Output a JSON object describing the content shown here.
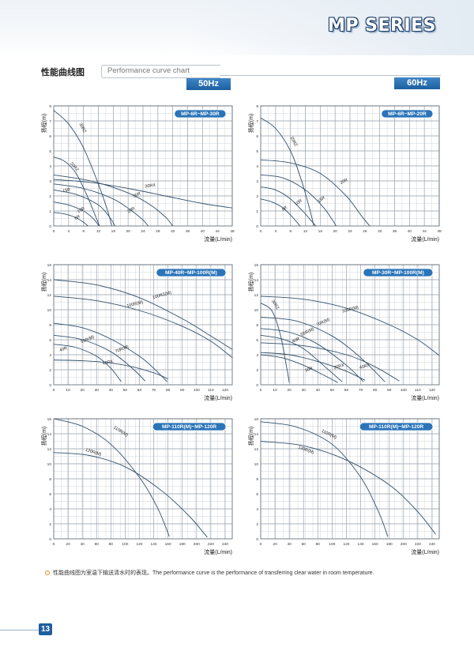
{
  "header": {
    "series_title": "MP SERIES"
  },
  "section": {
    "title_zh": "性能曲线图",
    "title_en": "Performance curve chart"
  },
  "badges": {
    "hz50": "50Hz",
    "hz60": "60Hz"
  },
  "footnote": "性能曲线图为室温下输送清水时的表现。The performance curve is the performance of transferring clear water in room temperature.",
  "page_number": "13",
  "chart_data": [
    {
      "type": "line",
      "id": "c50a",
      "title": "MP-6R~MP-30R",
      "ylabel": "扬程(m)",
      "xlabel": "流量(L/min)",
      "xlim": [
        0,
        48
      ],
      "ylim": [
        0,
        8
      ],
      "xticks": [
        4,
        8,
        12,
        16,
        20,
        24,
        28,
        32,
        36,
        40,
        44,
        48
      ],
      "yticks": [
        1,
        2,
        3,
        4,
        5,
        6,
        7,
        8
      ],
      "series": [
        {
          "name": "30RZ",
          "x": [
            0,
            4,
            8,
            12,
            14.5,
            15.6
          ],
          "y": [
            7.7,
            6.8,
            5.2,
            2.8,
            1.0,
            0
          ],
          "label_at": [
            7.5,
            6.5
          ],
          "label_rot": 62
        },
        {
          "name": "20RZ",
          "x": [
            0,
            3,
            6,
            9,
            11,
            12.3
          ],
          "y": [
            4.6,
            4.3,
            3.5,
            2.0,
            0.8,
            0
          ],
          "label_at": [
            5.3,
            3.9
          ],
          "label_rot": 48
        },
        {
          "name": "30RX",
          "x": [
            0,
            10,
            20,
            30,
            40,
            48
          ],
          "y": [
            3.1,
            2.9,
            2.5,
            2.0,
            1.5,
            1.2
          ],
          "label_at": [
            26,
            2.6
          ],
          "label_rot": -8
        },
        {
          "name": "30R",
          "x": [
            0,
            10,
            20,
            26,
            30,
            32
          ],
          "y": [
            3.4,
            3.0,
            2.2,
            1.4,
            0.6,
            0
          ],
          "label_at": [
            22.5,
            2.0
          ],
          "label_rot": -25
        },
        {
          "name": "20R",
          "x": [
            0,
            8,
            16,
            21,
            24,
            25.4
          ],
          "y": [
            2.8,
            2.5,
            1.8,
            1.0,
            0.4,
            0
          ],
          "label_at": [
            21,
            1.0
          ],
          "label_rot": -32
        },
        {
          "name": "15R",
          "x": [
            0,
            6,
            12,
            15,
            16.5
          ],
          "y": [
            2.4,
            2.1,
            1.4,
            0.6,
            0
          ],
          "label_at": [
            3.5,
            2.3
          ],
          "label_rot": -12
        },
        {
          "name": "10R",
          "x": [
            0,
            4,
            8,
            10.6,
            12.2
          ],
          "y": [
            1.6,
            1.4,
            1.0,
            0.5,
            0
          ],
          "label_at": [
            7.5,
            1.0
          ],
          "label_rot": -28
        },
        {
          "name": "6R",
          "x": [
            0,
            3,
            6,
            8,
            9.2
          ],
          "y": [
            0.9,
            0.8,
            0.55,
            0.25,
            0
          ],
          "label_at": [
            6.5,
            0.5
          ],
          "label_rot": -28
        }
      ]
    },
    {
      "type": "line",
      "id": "c60a",
      "title": "MP-6R~MP-20R",
      "ylabel": "扬程(m)",
      "xlabel": "流量(L/min)",
      "xlim": [
        0,
        48
      ],
      "ylim": [
        0,
        8
      ],
      "xticks": [
        4,
        8,
        12,
        16,
        20,
        24,
        28,
        32,
        36,
        40,
        44,
        48
      ],
      "yticks": [
        1,
        2,
        3,
        4,
        5,
        6,
        7,
        8
      ],
      "series": [
        {
          "name": "20RZ",
          "x": [
            0,
            4,
            8,
            11,
            13.3,
            14.3
          ],
          "y": [
            7.2,
            6.5,
            5.0,
            3.0,
            1.0,
            0
          ],
          "label_at": [
            8.6,
            5.6
          ],
          "label_rot": 62
        },
        {
          "name": "20R",
          "x": [
            0,
            8,
            16,
            23,
            27,
            29.3
          ],
          "y": [
            4.4,
            4.2,
            3.5,
            2.0,
            0.7,
            0
          ],
          "label_at": [
            22.5,
            2.9
          ],
          "label_rot": -28
        },
        {
          "name": "15R",
          "x": [
            0,
            6,
            12,
            17,
            20.3
          ],
          "y": [
            3.4,
            3.2,
            2.4,
            1.2,
            0
          ],
          "label_at": [
            16.5,
            1.7
          ],
          "label_rot": -34
        },
        {
          "name": "10R",
          "x": [
            0,
            4,
            8,
            12,
            14.8
          ],
          "y": [
            2.6,
            2.4,
            1.8,
            0.8,
            0
          ],
          "label_at": [
            10.3,
            1.5
          ],
          "label_rot": -34
        },
        {
          "name": "6R",
          "x": [
            0,
            3,
            6,
            8.5,
            10.6
          ],
          "y": [
            1.8,
            1.6,
            1.2,
            0.6,
            0
          ],
          "label_at": [
            6.6,
            1.1
          ],
          "label_rot": -34
        }
      ]
    },
    {
      "type": "line",
      "id": "c50b",
      "title": "MP-40R~MP-100R(M)",
      "ylabel": "扬程(m)",
      "xlabel": "流量(L/min)",
      "xlim": [
        0,
        125
      ],
      "ylim": [
        0,
        16
      ],
      "xticks": [
        10,
        20,
        30,
        40,
        50,
        60,
        70,
        80,
        90,
        100,
        110,
        120
      ],
      "yticks": [
        2,
        4,
        6,
        8,
        10,
        12,
        14,
        16
      ],
      "series": [
        {
          "name": "100RZ(M)",
          "x": [
            0,
            30,
            60,
            90,
            110,
            125
          ],
          "y": [
            14,
            13.3,
            11.6,
            8.8,
            6.5,
            4.7
          ],
          "label_at": [
            76,
            11.8
          ],
          "label_rot": -16
        },
        {
          "name": "100R(M)",
          "x": [
            0,
            30,
            60,
            90,
            110,
            125
          ],
          "y": [
            11.8,
            11.2,
            9.9,
            7.8,
            5.8,
            3.6
          ],
          "label_at": [
            57,
            10.6
          ],
          "label_rot": -14
        },
        {
          "name": "70R(M)",
          "x": [
            0,
            20,
            40,
            60,
            70,
            79.4
          ],
          "y": [
            8.2,
            7.6,
            6.1,
            3.8,
            2.2,
            0.4
          ],
          "label_at": [
            48,
            4.6
          ],
          "label_rot": -22
        },
        {
          "name": "55R(M)",
          "x": [
            0,
            20,
            40,
            55,
            64
          ],
          "y": [
            6.6,
            6.0,
            4.4,
            2.2,
            0.5
          ],
          "label_at": [
            24,
            5.9
          ],
          "label_rot": -22
        },
        {
          "name": "40RX",
          "x": [
            0,
            20,
            40,
            55,
            70,
            80
          ],
          "y": [
            3.3,
            3.2,
            2.9,
            2.4,
            1.6,
            0.8
          ],
          "label_at": [
            38,
            2.8
          ],
          "label_rot": -12
        },
        {
          "name": "40R",
          "x": [
            0,
            15,
            30,
            40,
            47.3
          ],
          "y": [
            5.4,
            5.0,
            3.8,
            2.2,
            0.4
          ],
          "label_at": [
            7,
            4.6
          ],
          "label_rot": -20
        }
      ]
    },
    {
      "type": "line",
      "id": "c60b",
      "title": "MP-30R~MP-100R(M)",
      "ylabel": "扬程(m)",
      "xlabel": "流量(L/min)",
      "xlim": [
        0,
        125
      ],
      "ylim": [
        0,
        16
      ],
      "xticks": [
        10,
        20,
        30,
        40,
        50,
        60,
        70,
        80,
        90,
        100,
        110,
        120
      ],
      "yticks": [
        2,
        4,
        6,
        8,
        10,
        12,
        14,
        16
      ],
      "series": [
        {
          "name": "100R(M)",
          "x": [
            0,
            30,
            60,
            90,
            110,
            125
          ],
          "y": [
            11.8,
            11.4,
            10.2,
            8.0,
            6.0,
            3.9
          ],
          "label_at": [
            63,
            9.9
          ],
          "label_rot": -15
        },
        {
          "name": "30RZ",
          "x": [
            0,
            8,
            14,
            18,
            20
          ],
          "y": [
            10.9,
            9.8,
            6.5,
            2.5,
            0.3
          ],
          "label_at": [
            9.5,
            10.6
          ],
          "label_rot": 58
        },
        {
          "name": "70R(M)",
          "x": [
            0,
            25,
            50,
            70,
            87
          ],
          "y": [
            9.0,
            8.5,
            6.5,
            3.6,
            0.4
          ],
          "label_at": [
            44,
            8.2
          ],
          "label_rot": -24
        },
        {
          "name": "55R(M)",
          "x": [
            0,
            20,
            40,
            60,
            72
          ],
          "y": [
            7.5,
            7.0,
            5.4,
            2.6,
            0.4
          ],
          "label_at": [
            33,
            6.9
          ],
          "label_rot": -26
        },
        {
          "name": "40R",
          "x": [
            0,
            15,
            30,
            45,
            57
          ],
          "y": [
            6.6,
            6.1,
            4.8,
            2.4,
            0.4
          ],
          "label_at": [
            25,
            5.8
          ],
          "label_rot": -26
        },
        {
          "name": "40RX",
          "x": [
            0,
            30,
            60,
            80,
            97
          ],
          "y": [
            5.6,
            5.2,
            4.0,
            2.4,
            0.5
          ],
          "label_at": [
            73,
            2.3
          ],
          "label_rot": -16
        },
        {
          "name": "30RX",
          "x": [
            0,
            20,
            40,
            60,
            73
          ],
          "y": [
            4.3,
            4.0,
            3.1,
            1.8,
            0.6
          ],
          "label_at": [
            55,
            2.3
          ],
          "label_rot": -16
        },
        {
          "name": "30R",
          "x": [
            0,
            15,
            30,
            45,
            54
          ],
          "y": [
            4.0,
            3.6,
            2.6,
            1.2,
            0.3
          ],
          "label_at": [
            34,
            1.9
          ],
          "label_rot": -22
        }
      ]
    },
    {
      "type": "line",
      "id": "c50c",
      "title": "MP-110R(M)~MP-120R",
      "ylabel": "扬程(m)",
      "xlabel": "流量(L/min)",
      "xlim": [
        0,
        250
      ],
      "ylim": [
        0,
        16
      ],
      "xticks": [
        20,
        40,
        60,
        80,
        100,
        120,
        140,
        160,
        180,
        200,
        220,
        240
      ],
      "yticks": [
        2,
        4,
        6,
        8,
        10,
        12,
        14,
        16
      ],
      "series": [
        {
          "name": "110R(M)",
          "x": [
            0,
            40,
            80,
            120,
            145,
            162
          ],
          "y": [
            16,
            15.0,
            12.6,
            8.2,
            4.2,
            0.3
          ],
          "label_at": [
            93,
            14.2
          ],
          "label_rot": 32
        },
        {
          "name": "120R(M)",
          "x": [
            0,
            50,
            100,
            150,
            190,
            215
          ],
          "y": [
            11.5,
            11.1,
            9.6,
            6.5,
            3.0,
            0.2
          ],
          "label_at": [
            55,
            11.4
          ],
          "label_rot": 18
        }
      ]
    },
    {
      "type": "line",
      "id": "c60c",
      "title": "MP-110R(M)~MP-120R",
      "ylabel": "扬程(m)",
      "xlabel": "流量(L/min)",
      "xlim": [
        0,
        250
      ],
      "ylim": [
        0,
        16
      ],
      "xticks": [
        20,
        40,
        60,
        80,
        100,
        120,
        140,
        160,
        180,
        200,
        220,
        240
      ],
      "yticks": [
        2,
        4,
        6,
        8,
        10,
        12,
        14,
        16
      ],
      "series": [
        {
          "name": "110R(M)",
          "x": [
            0,
            50,
            100,
            140,
            165,
            178
          ],
          "y": [
            15.6,
            14.9,
            12.6,
            8.2,
            3.6,
            0.3
          ],
          "label_at": [
            95,
            13.8
          ],
          "label_rot": 26
        },
        {
          "name": "120R(M)",
          "x": [
            0,
            60,
            120,
            180,
            220,
            245
          ],
          "y": [
            13,
            12.4,
            10.5,
            7.2,
            3.6,
            0.6
          ],
          "label_at": [
            63,
            11.7
          ],
          "label_rot": 20
        }
      ]
    }
  ]
}
